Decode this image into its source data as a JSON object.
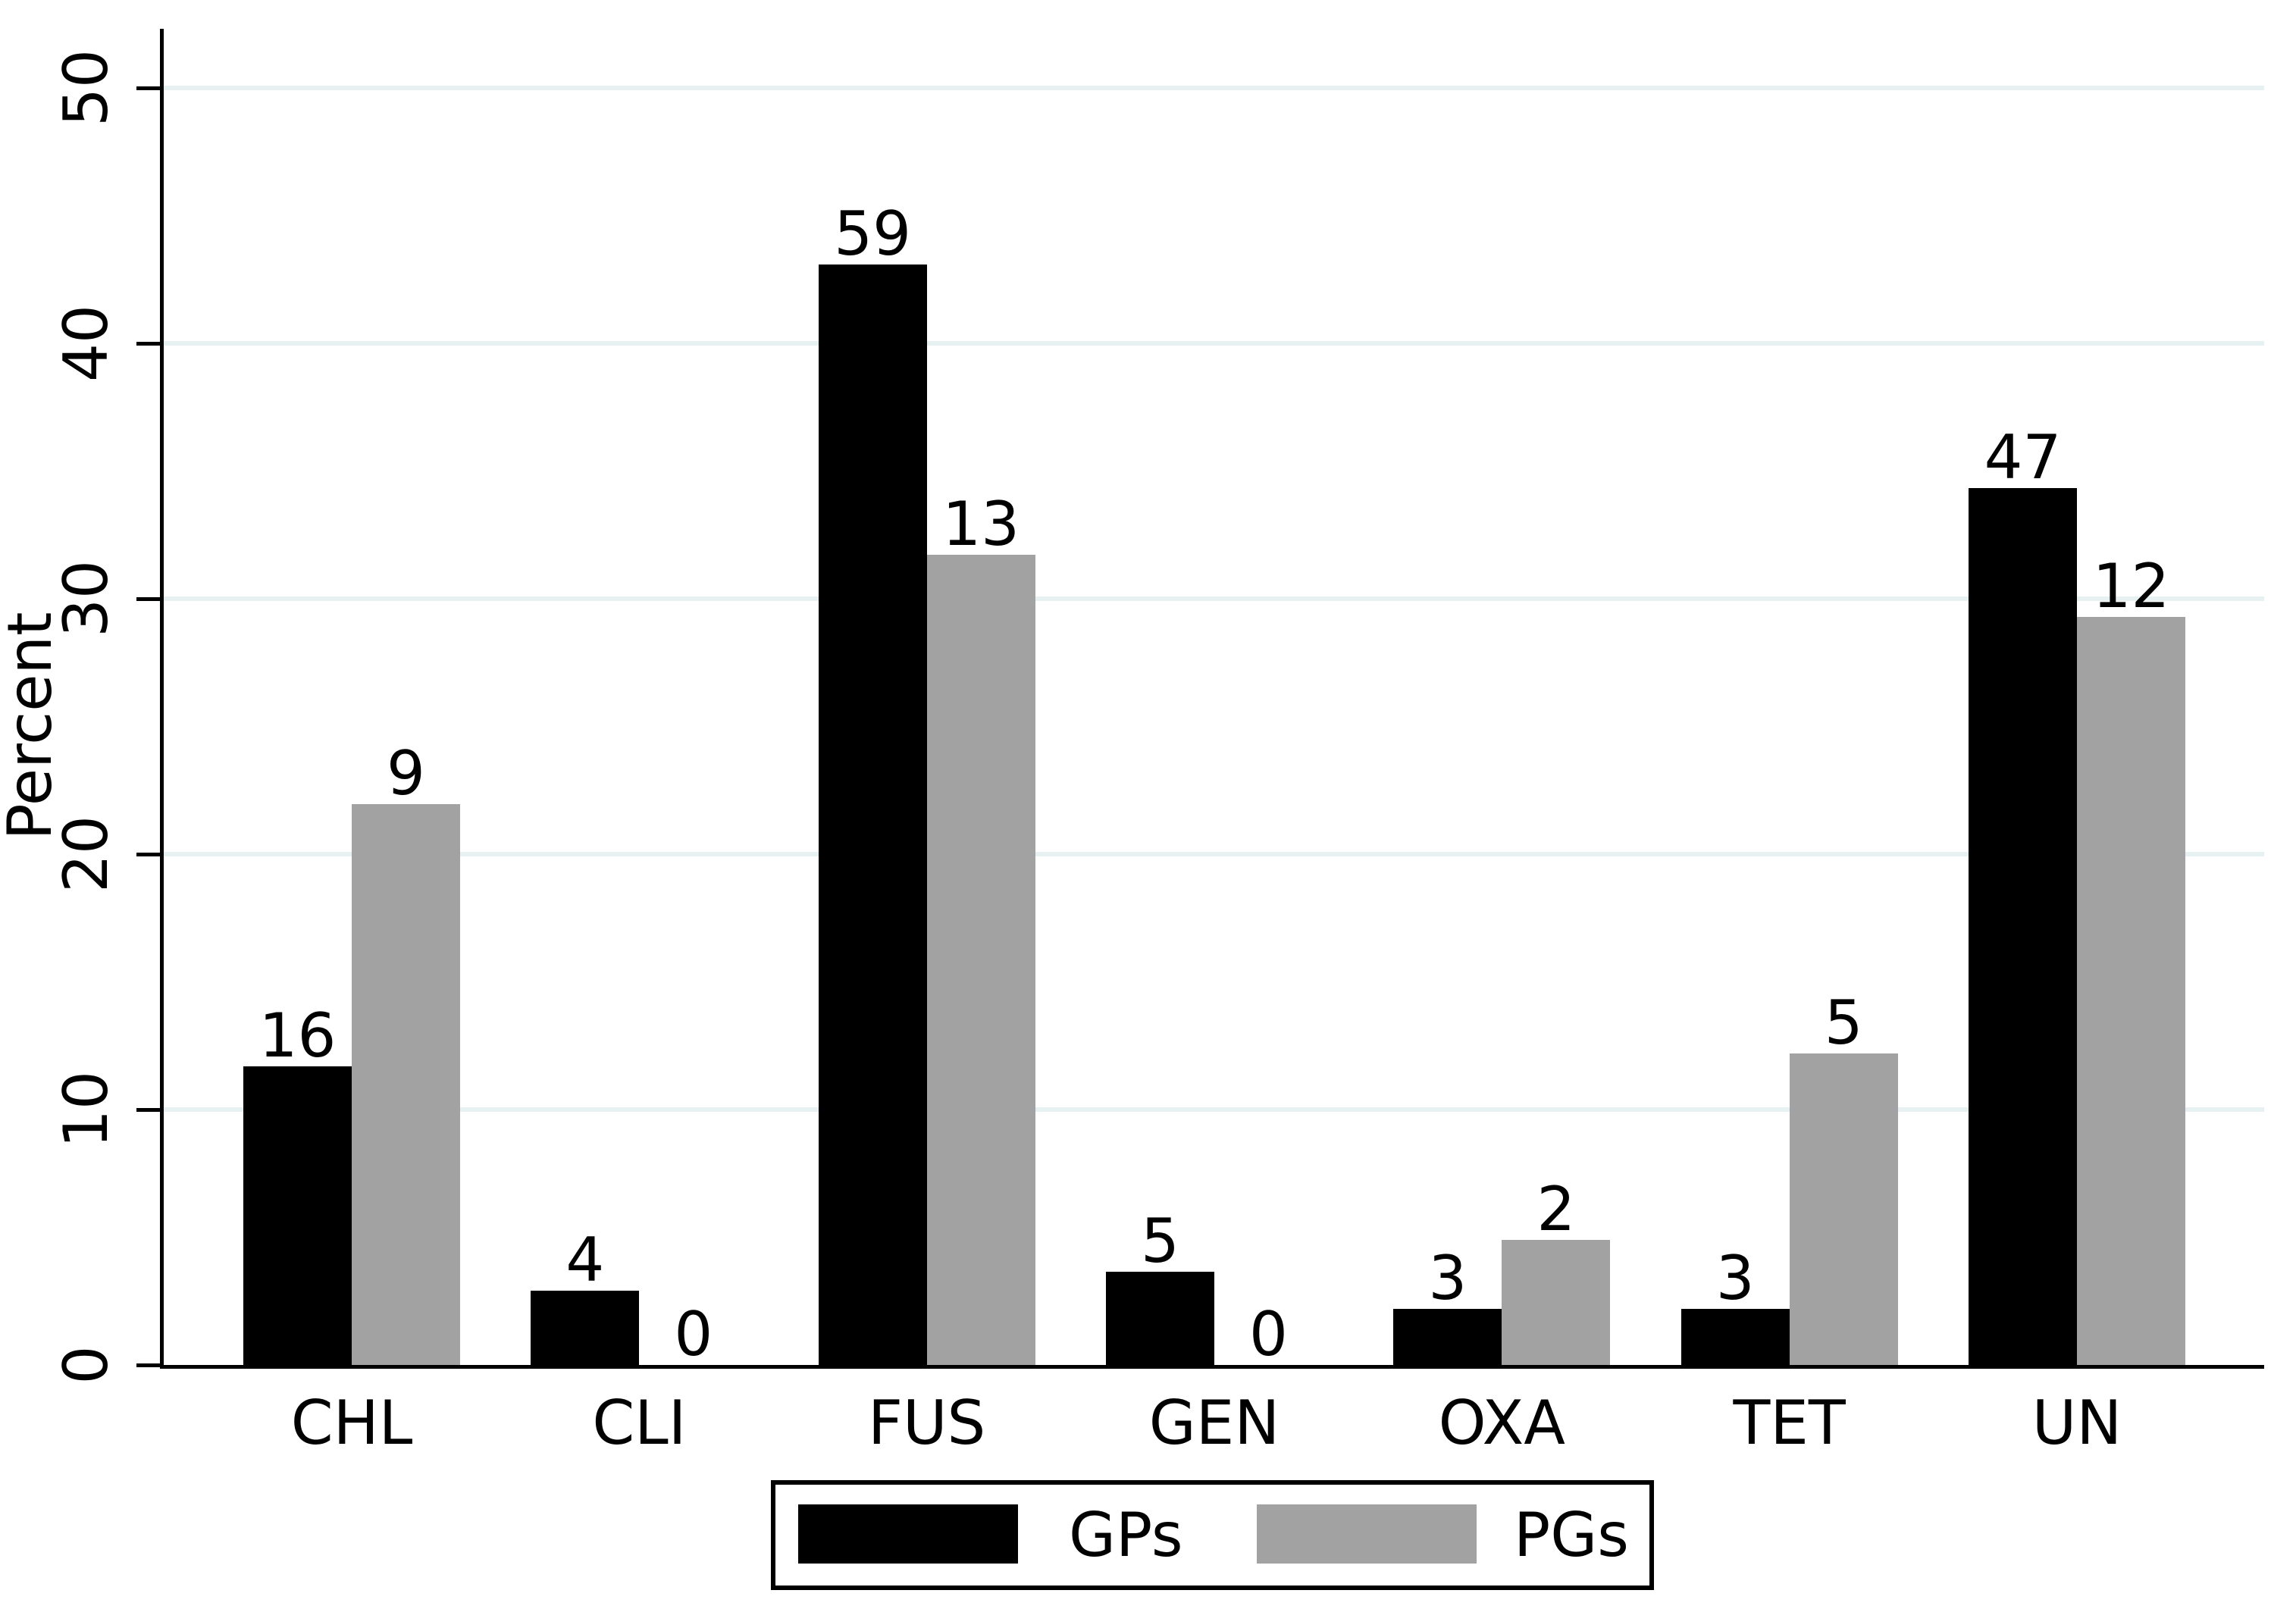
{
  "chart_data": {
    "type": "bar",
    "title": "",
    "xlabel": "",
    "ylabel": "Percent",
    "categories": [
      "CHL",
      "CLI",
      "FUS",
      "GEN",
      "OXA",
      "TET",
      "UN"
    ],
    "series": [
      {
        "name": "GPs",
        "color": "#000000",
        "bar_label_values": [
          "16",
          "4",
          "59",
          "5",
          "3",
          "3",
          "47"
        ],
        "percent_values": [
          11.68,
          2.92,
          43.07,
          3.65,
          2.19,
          2.19,
          34.31
        ]
      },
      {
        "name": "PGs",
        "color": "#a2a2a2",
        "bar_label_values": [
          "9",
          "0",
          "13",
          "0",
          "2",
          "5",
          "12"
        ],
        "percent_values": [
          21.95,
          0,
          31.71,
          0,
          4.88,
          12.2,
          29.27
        ]
      }
    ],
    "y_ticks": [
      "0",
      "10",
      "20",
      "30",
      "40",
      "50"
    ],
    "ylim": [
      0,
      52.3
    ],
    "grid": true,
    "gridline_color": "#e8f1f2",
    "legend_position": "bottom-outside",
    "legend_entries": [
      "GPs",
      "PGs"
    ]
  }
}
